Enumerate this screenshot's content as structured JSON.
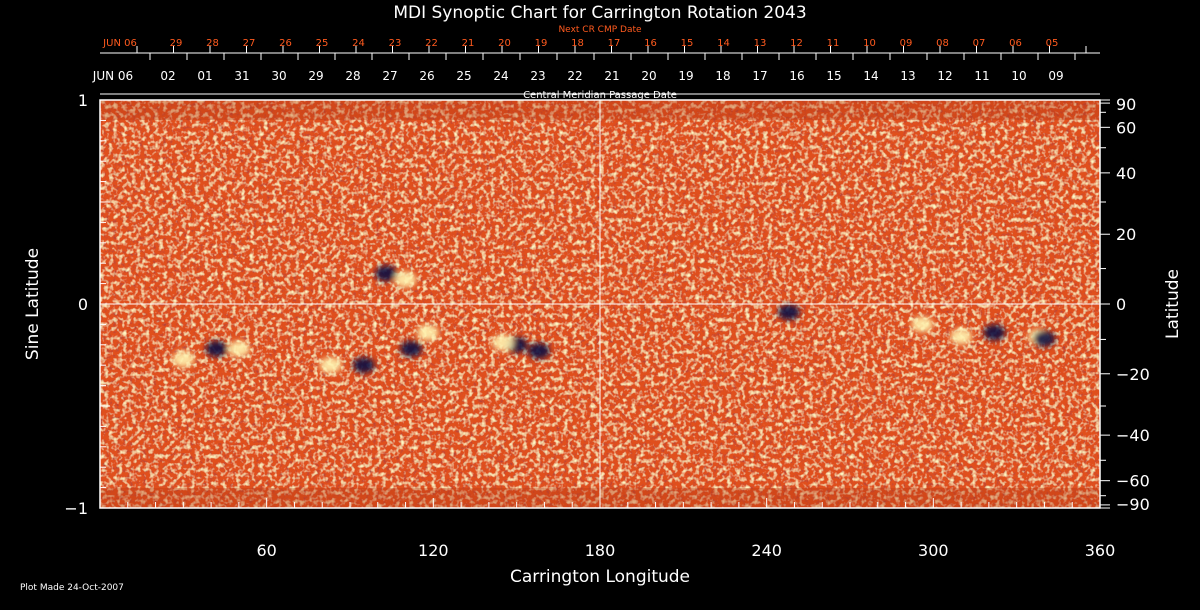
{
  "chart_data": {
    "type": "heatmap",
    "title": "MDI Synoptic Chart for Carrington Rotation 2043",
    "xlabel": "Carrington Longitude",
    "ylabel_left": "Sine Latitude",
    "ylabel_right": "Latitude",
    "xlim": [
      0,
      360
    ],
    "ylim": [
      -1,
      1
    ],
    "x_ticks": [
      "60",
      "120",
      "180",
      "240",
      "300",
      "360"
    ],
    "y_ticks_left": [
      "1",
      "0",
      "−1"
    ],
    "y_ticks_right": [
      "90",
      "60",
      "40",
      "20",
      "0",
      "−20",
      "−40",
      "−60",
      "−90"
    ],
    "top_axis_1": {
      "label": "Next CR CMP Date",
      "color": "#ff5a1e",
      "labels": [
        "JUN 06",
        "29",
        "28",
        "27",
        "26",
        "25",
        "24",
        "23",
        "22",
        "21",
        "20",
        "19",
        "18",
        "17",
        "16",
        "15",
        "14",
        "13",
        "12",
        "11",
        "10",
        "09",
        "08",
        "07",
        "06",
        "05"
      ]
    },
    "top_axis_2": {
      "label": "Central Meridian Passage Date",
      "color": "#ffffff",
      "labels": [
        "JUN 06",
        "02",
        "01",
        "31",
        "30",
        "29",
        "28",
        "27",
        "26",
        "25",
        "24",
        "23",
        "22",
        "21",
        "20",
        "19",
        "18",
        "17",
        "16",
        "15",
        "14",
        "13",
        "12",
        "11",
        "10",
        "09"
      ]
    },
    "footer": "Plot Made 24-Oct-2007",
    "colors": {
      "background": "#000000",
      "field_base": "#e0501c",
      "positive_polarity": "#fff3b0",
      "negative_polarity": "#101040",
      "grid": "#ffffff"
    },
    "active_regions": [
      {
        "lon": 30,
        "sinlat": -0.27,
        "polarity": "positive"
      },
      {
        "lon": 42,
        "sinlat": -0.22,
        "polarity": "negative"
      },
      {
        "lon": 50,
        "sinlat": -0.22,
        "polarity": "positive"
      },
      {
        "lon": 83,
        "sinlat": -0.3,
        "polarity": "positive"
      },
      {
        "lon": 95,
        "sinlat": -0.3,
        "polarity": "negative"
      },
      {
        "lon": 103,
        "sinlat": 0.15,
        "polarity": "negative"
      },
      {
        "lon": 110,
        "sinlat": 0.12,
        "polarity": "positive"
      },
      {
        "lon": 112,
        "sinlat": -0.22,
        "polarity": "negative"
      },
      {
        "lon": 118,
        "sinlat": -0.14,
        "polarity": "positive"
      },
      {
        "lon": 150,
        "sinlat": -0.2,
        "polarity": "negative"
      },
      {
        "lon": 158,
        "sinlat": -0.23,
        "polarity": "negative"
      },
      {
        "lon": 145,
        "sinlat": -0.19,
        "polarity": "positive"
      },
      {
        "lon": 248,
        "sinlat": -0.04,
        "polarity": "negative"
      },
      {
        "lon": 296,
        "sinlat": -0.1,
        "polarity": "positive"
      },
      {
        "lon": 310,
        "sinlat": -0.16,
        "polarity": "positive"
      },
      {
        "lon": 322,
        "sinlat": -0.14,
        "polarity": "negative"
      },
      {
        "lon": 338,
        "sinlat": -0.16,
        "polarity": "positive"
      },
      {
        "lon": 340,
        "sinlat": -0.17,
        "polarity": "negative"
      }
    ]
  }
}
